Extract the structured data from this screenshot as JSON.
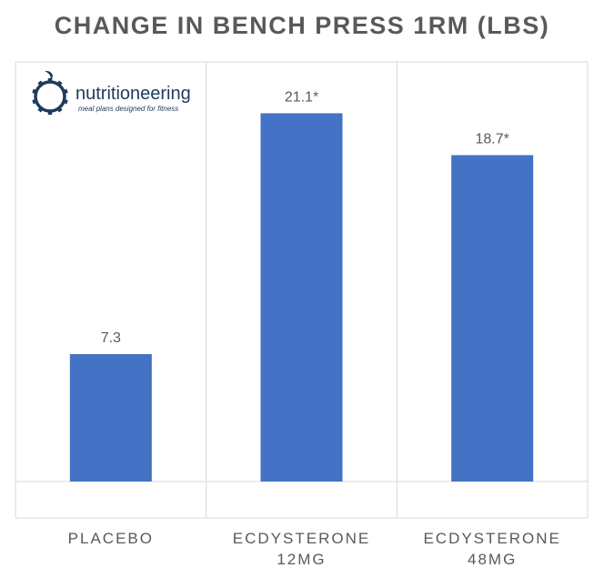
{
  "logo": {
    "name": "nutritioneering",
    "tagline": "meal plans designed for fitness",
    "color": "#1f3a5c",
    "icon": "apple-gear-icon"
  },
  "colors": {
    "bar": "#4472c4",
    "title": "#595959",
    "label": "#595959",
    "grid": "#d9d9d9"
  },
  "chart_data": {
    "type": "bar",
    "title": "CHANGE IN BENCH PRESS 1RM (LBS)",
    "xlabel": "",
    "ylabel": "",
    "categories": [
      [
        "PLACEBO"
      ],
      [
        "ECDYSTERONE",
        "12MG"
      ],
      [
        "ECDYSTERONE",
        "48MG"
      ]
    ],
    "values": [
      7.3,
      21.1,
      18.7
    ],
    "data_labels": [
      "7.3",
      "21.1*",
      "18.7*"
    ],
    "ylim": [
      0,
      23
    ],
    "grid": false,
    "legend": "none"
  }
}
